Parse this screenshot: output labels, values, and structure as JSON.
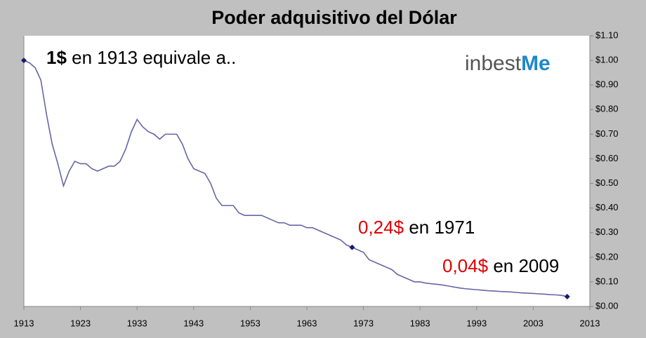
{
  "chart_data": {
    "type": "line",
    "title": "Poder adquisitivo del Dólar",
    "logo": {
      "main": "inbest",
      "accent": "Me"
    },
    "annotations": [
      {
        "highlight": "1$",
        "text": "en 1913 equivale a.."
      },
      {
        "highlight": "0,24$",
        "text": "en 1971"
      },
      {
        "highlight": "0,04$",
        "text": "en 2009"
      }
    ],
    "series": [
      {
        "name": "Poder adquisitivo",
        "color": "#6666a6",
        "x": [
          1913,
          1914,
          1915,
          1916,
          1917,
          1918,
          1919,
          1920,
          1921,
          1922,
          1923,
          1924,
          1925,
          1926,
          1927,
          1928,
          1929,
          1930,
          1931,
          1932,
          1933,
          1934,
          1935,
          1936,
          1937,
          1938,
          1939,
          1940,
          1941,
          1942,
          1943,
          1944,
          1945,
          1946,
          1947,
          1948,
          1949,
          1950,
          1951,
          1952,
          1953,
          1954,
          1955,
          1956,
          1957,
          1958,
          1959,
          1960,
          1961,
          1962,
          1963,
          1964,
          1965,
          1966,
          1967,
          1968,
          1969,
          1970,
          1971,
          1972,
          1973,
          1974,
          1975,
          1976,
          1977,
          1978,
          1979,
          1980,
          1981,
          1982,
          1983,
          1984,
          1985,
          1986,
          1987,
          1988,
          1989,
          1990,
          1991,
          1992,
          1993,
          1994,
          1995,
          1996,
          1997,
          1998,
          1999,
          2000,
          2001,
          2002,
          2003,
          2004,
          2005,
          2006,
          2007,
          2008,
          2009
        ],
        "values": [
          1.0,
          0.99,
          0.97,
          0.92,
          0.78,
          0.66,
          0.58,
          0.49,
          0.55,
          0.59,
          0.58,
          0.58,
          0.56,
          0.55,
          0.56,
          0.57,
          0.57,
          0.59,
          0.64,
          0.71,
          0.76,
          0.73,
          0.71,
          0.7,
          0.68,
          0.7,
          0.7,
          0.7,
          0.66,
          0.6,
          0.56,
          0.55,
          0.54,
          0.5,
          0.44,
          0.41,
          0.41,
          0.41,
          0.38,
          0.37,
          0.37,
          0.37,
          0.37,
          0.36,
          0.35,
          0.34,
          0.34,
          0.33,
          0.33,
          0.33,
          0.32,
          0.32,
          0.31,
          0.3,
          0.29,
          0.28,
          0.27,
          0.25,
          0.24,
          0.23,
          0.22,
          0.19,
          0.18,
          0.17,
          0.16,
          0.15,
          0.13,
          0.12,
          0.11,
          0.1,
          0.1,
          0.095,
          0.092,
          0.09,
          0.087,
          0.083,
          0.079,
          0.075,
          0.072,
          0.07,
          0.068,
          0.066,
          0.064,
          0.063,
          0.061,
          0.06,
          0.059,
          0.057,
          0.055,
          0.054,
          0.053,
          0.051,
          0.05,
          0.048,
          0.047,
          0.045,
          0.04
        ]
      }
    ],
    "markers": {
      "color": "#1a1a6e",
      "x": [
        1913,
        1971,
        2009
      ],
      "values": [
        1.0,
        0.24,
        0.04
      ]
    },
    "xlim": [
      1913,
      2013
    ],
    "xticks": [
      1913,
      1923,
      1933,
      1943,
      1953,
      1963,
      1973,
      1983,
      1993,
      2003,
      2013
    ],
    "ylim": [
      0,
      1.1
    ],
    "yticks": [
      {
        "value": 0,
        "label": "$0.00"
      },
      {
        "value": 0.1,
        "label": "$0.10"
      },
      {
        "value": 0.2,
        "label": "$0.20"
      },
      {
        "value": 0.3,
        "label": "$0.30"
      },
      {
        "value": 0.4,
        "label": "$0.40"
      },
      {
        "value": 0.5,
        "label": "$0.50"
      },
      {
        "value": 0.6,
        "label": "$0.60"
      },
      {
        "value": 0.7,
        "label": "$0.70"
      },
      {
        "value": 0.8,
        "label": "$0.80"
      },
      {
        "value": 0.9,
        "label": "$0.90"
      },
      {
        "value": 1.0,
        "label": "$1.00"
      },
      {
        "value": 1.1,
        "label": "$1.10"
      }
    ]
  }
}
